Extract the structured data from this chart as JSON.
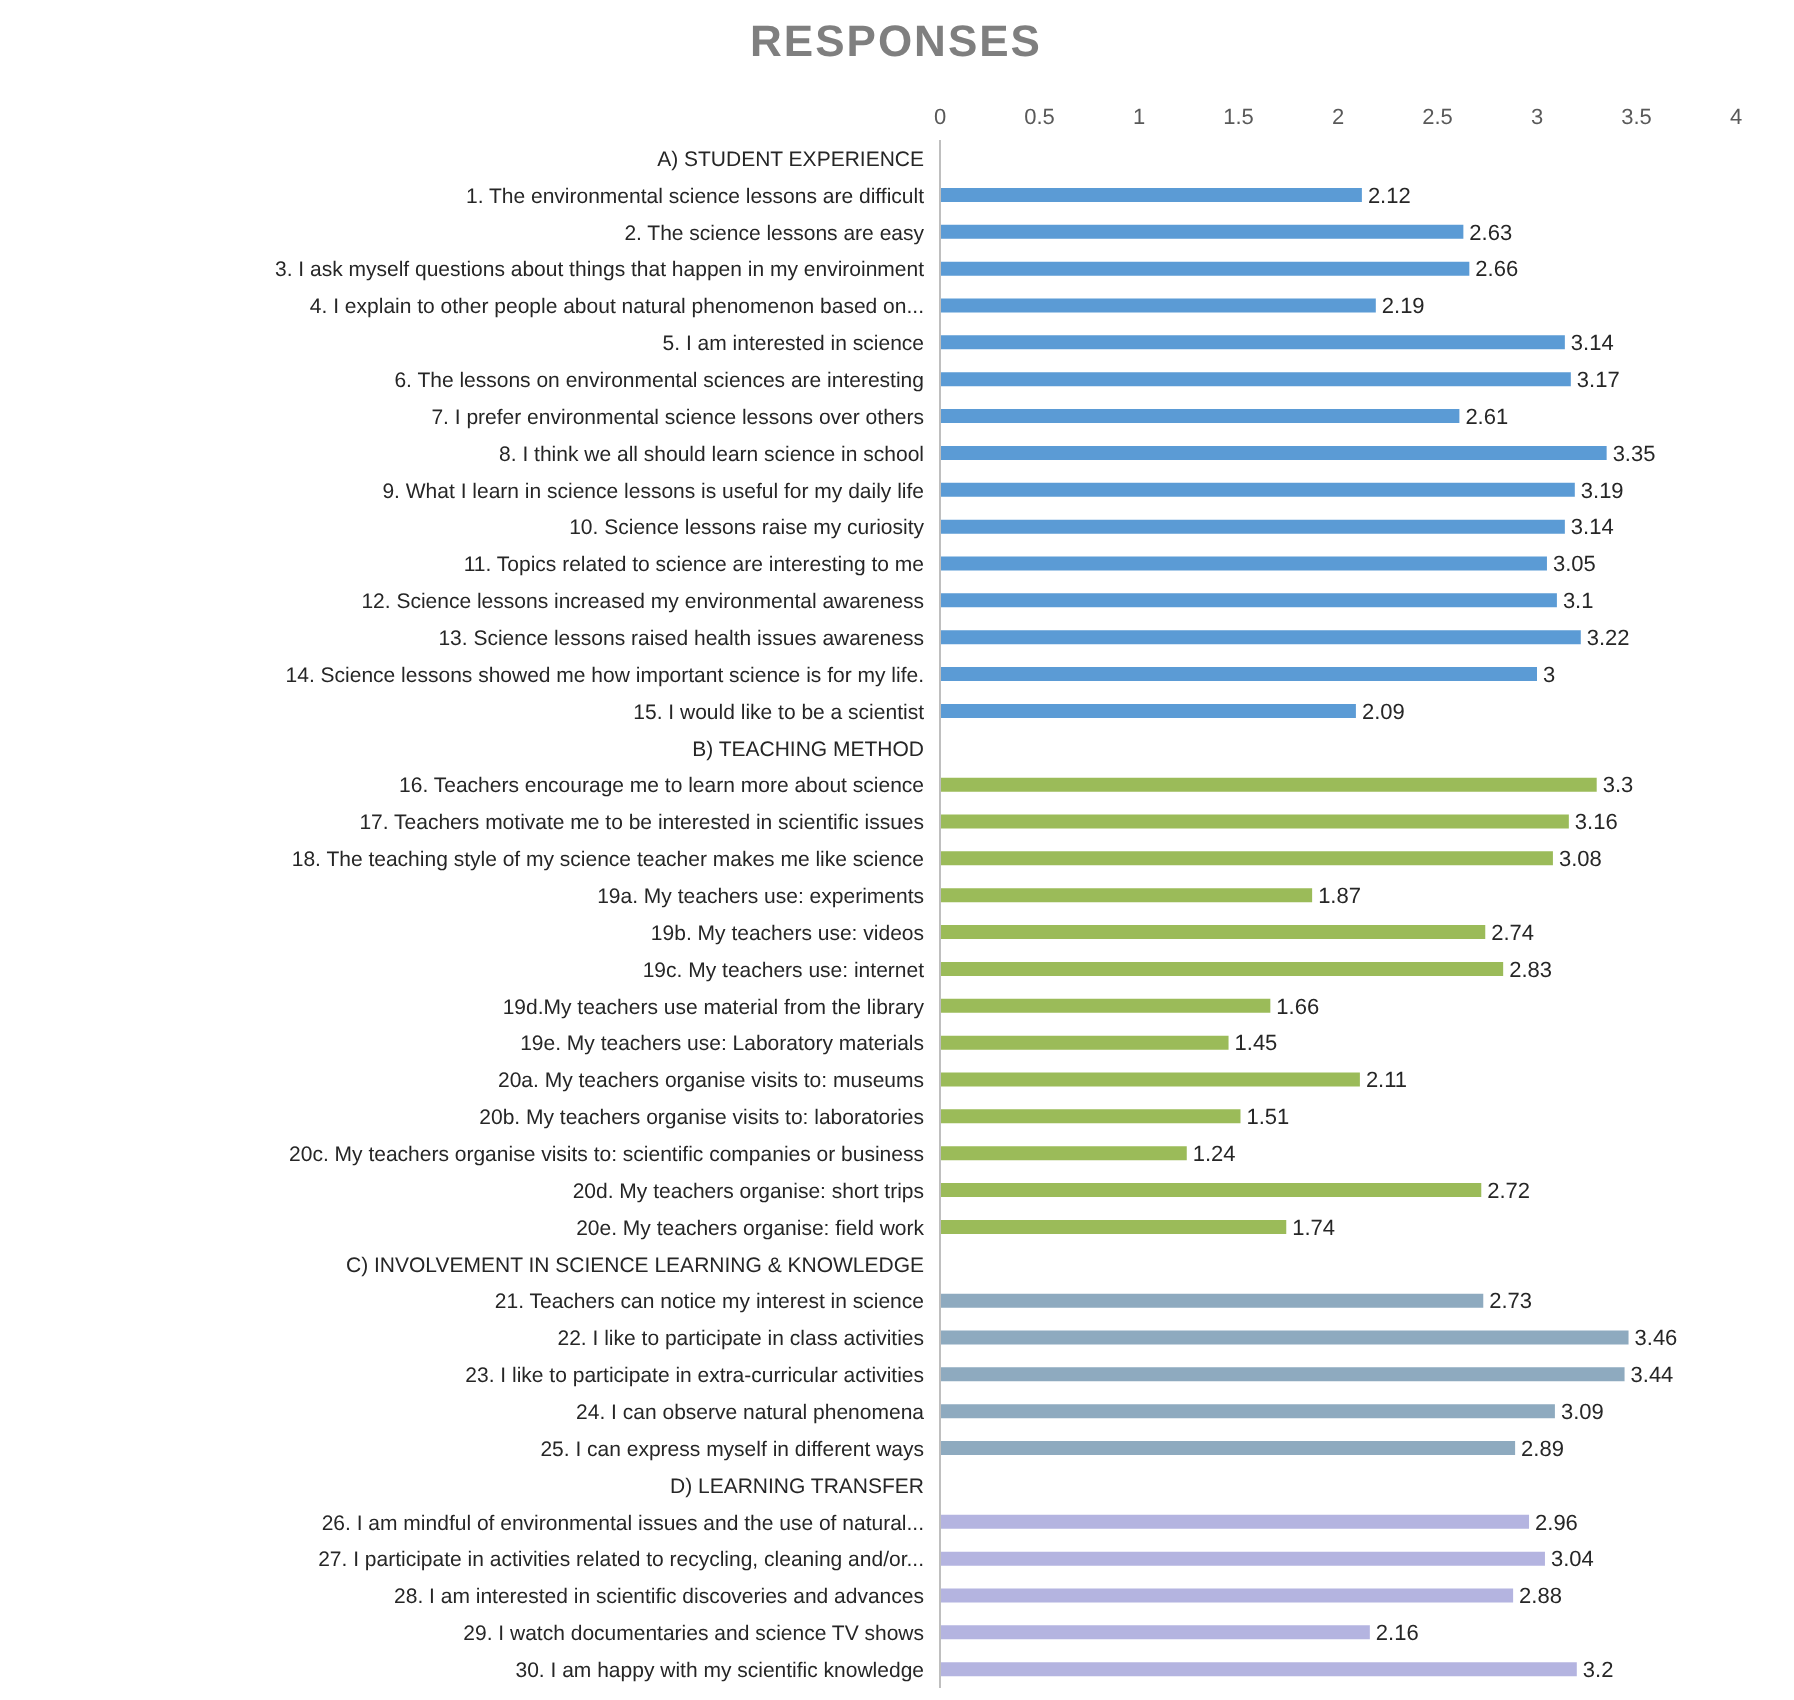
{
  "chart_data": {
    "type": "bar",
    "orientation": "horizontal",
    "title": "RESPONSES",
    "categories": [
      "A) STUDENT EXPERIENCE",
      "1. The environmental science lessons are difficult",
      "2. The science lessons are easy",
      "3. I ask myself questions about things that happen in my enviroinment",
      "4. I explain to other people about natural phenomenon based on...",
      "5. I am interested in science",
      "6. The lessons on environmental sciences are interesting",
      "7. I prefer environmental science lessons over others",
      "8. I think we all should learn science in school",
      "9. What I learn in science lessons is useful for my daily life",
      "10. Science lessons raise my curiosity",
      "11. Topics related to science are interesting to me",
      "12. Science lessons increased my environmental awareness",
      "13. Science lessons raised health issues awareness",
      "14. Science lessons showed me how important science is for my life.",
      "15. I would like to be a scientist",
      "B) TEACHING METHOD",
      "16. Teachers encourage me to learn more about science",
      "17. Teachers motivate me to be interested in scientific issues",
      "18. The teaching style of my science teacher makes me like science",
      "19a. My teachers use: experiments",
      "19b. My teachers use: videos",
      "19c. My teachers use: internet",
      "19d.My teachers use material from the library",
      "19e. My teachers use: Laboratory materials",
      "20a. My teachers organise visits to: museums",
      "20b. My teachers organise visits to: laboratories",
      "20c. My teachers organise visits to: scientific companies or business",
      "20d. My teachers organise: short trips",
      "20e. My teachers organise: field work",
      "C) INVOLVEMENT IN SCIENCE LEARNING & KNOWLEDGE",
      "21. Teachers can notice my interest in science",
      "22. I like to participate in class activities",
      "23. I like to participate in extra-curricular activities",
      "24. I can observe natural phenomena",
      "25. I can express myself in different ways",
      "D) LEARNING TRANSFER",
      "26. I am mindful of environmental issues and the use of natural...",
      "27. I participate in activities related to recycling, cleaning and/or...",
      "28. I am interested in scientific discoveries and advances",
      "29. I watch documentaries and science TV shows",
      "30. I am happy with my scientific knowledge"
    ],
    "values": [
      null,
      2.12,
      2.63,
      2.66,
      2.19,
      3.14,
      3.17,
      2.61,
      3.35,
      3.19,
      3.14,
      3.05,
      3.1,
      3.22,
      3,
      2.09,
      null,
      3.3,
      3.16,
      3.08,
      1.87,
      2.74,
      2.83,
      1.66,
      1.45,
      2.11,
      1.51,
      1.24,
      2.72,
      1.74,
      null,
      2.73,
      3.46,
      3.44,
      3.09,
      2.89,
      null,
      2.96,
      3.04,
      2.88,
      2.16,
      3.2
    ],
    "colors": [
      null,
      "#5b9bd5",
      "#5b9bd5",
      "#5b9bd5",
      "#5b9bd5",
      "#5b9bd5",
      "#5b9bd5",
      "#5b9bd5",
      "#5b9bd5",
      "#5b9bd5",
      "#5b9bd5",
      "#5b9bd5",
      "#5b9bd5",
      "#5b9bd5",
      "#5b9bd5",
      "#5b9bd5",
      null,
      "#9bbb59",
      "#9bbb59",
      "#9bbb59",
      "#9bbb59",
      "#9bbb59",
      "#9bbb59",
      "#9bbb59",
      "#9bbb59",
      "#9bbb59",
      "#9bbb59",
      "#9bbb59",
      "#9bbb59",
      "#9bbb59",
      null,
      "#8eaabf",
      "#8eaabf",
      "#8eaabf",
      "#8eaabf",
      "#8eaabf",
      null,
      "#b4b4e0",
      "#b4b4e0",
      "#b4b4e0",
      "#b4b4e0",
      "#b4b4e0"
    ],
    "xlim": [
      0,
      4
    ],
    "xticks": [
      0,
      0.5,
      1,
      1.5,
      2,
      2.5,
      3,
      3.5,
      4
    ],
    "data_labels": true,
    "grid": false
  }
}
